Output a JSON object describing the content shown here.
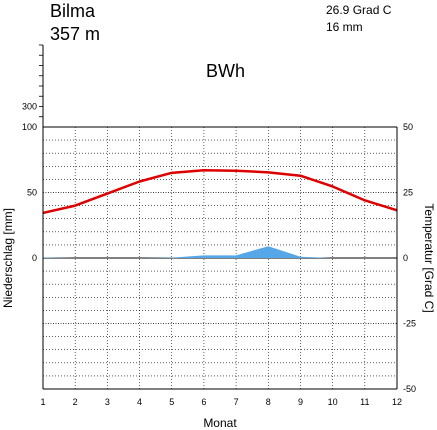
{
  "station": {
    "name": "Bilma",
    "elevation": "357 m",
    "mean_temp": "26.9 Grad C",
    "annual_precip": "16 mm",
    "climate_class": "BWh"
  },
  "chart_data": {
    "type": "line",
    "x": [
      1,
      2,
      3,
      4,
      5,
      6,
      7,
      8,
      9,
      10,
      11,
      12
    ],
    "xlabel": "Monat",
    "ylabel_left": "Niederschlag [mm]",
    "ylabel_right": "Temperatur [Grad C]",
    "left_ticks": [
      "0",
      "50",
      "100"
    ],
    "left_extra_ticks": [
      "300"
    ],
    "right_ticks": [
      "-50",
      "-25",
      "0",
      "25",
      "50"
    ],
    "x_ticks": [
      "1",
      "2",
      "3",
      "4",
      "5",
      "6",
      "7",
      "8",
      "9",
      "10",
      "11",
      "12"
    ],
    "xlim": [
      1,
      12
    ],
    "precip_ylim": [
      0,
      100
    ],
    "temp_ylim": [
      -50,
      50
    ],
    "grid": true,
    "series": [
      {
        "kind": "temperature",
        "color": "#dd0000",
        "values": [
          17.2,
          20.0,
          24.6,
          29.2,
          32.5,
          33.5,
          33.3,
          32.7,
          31.4,
          27.3,
          22.0,
          18.2
        ]
      },
      {
        "kind": "precipitation",
        "color": "#55a7e8",
        "values": [
          0.4,
          0.0,
          0.0,
          0.0,
          0.3,
          2.0,
          2.0,
          9.0,
          1.0,
          0.0,
          0.0,
          0.0
        ]
      }
    ]
  }
}
